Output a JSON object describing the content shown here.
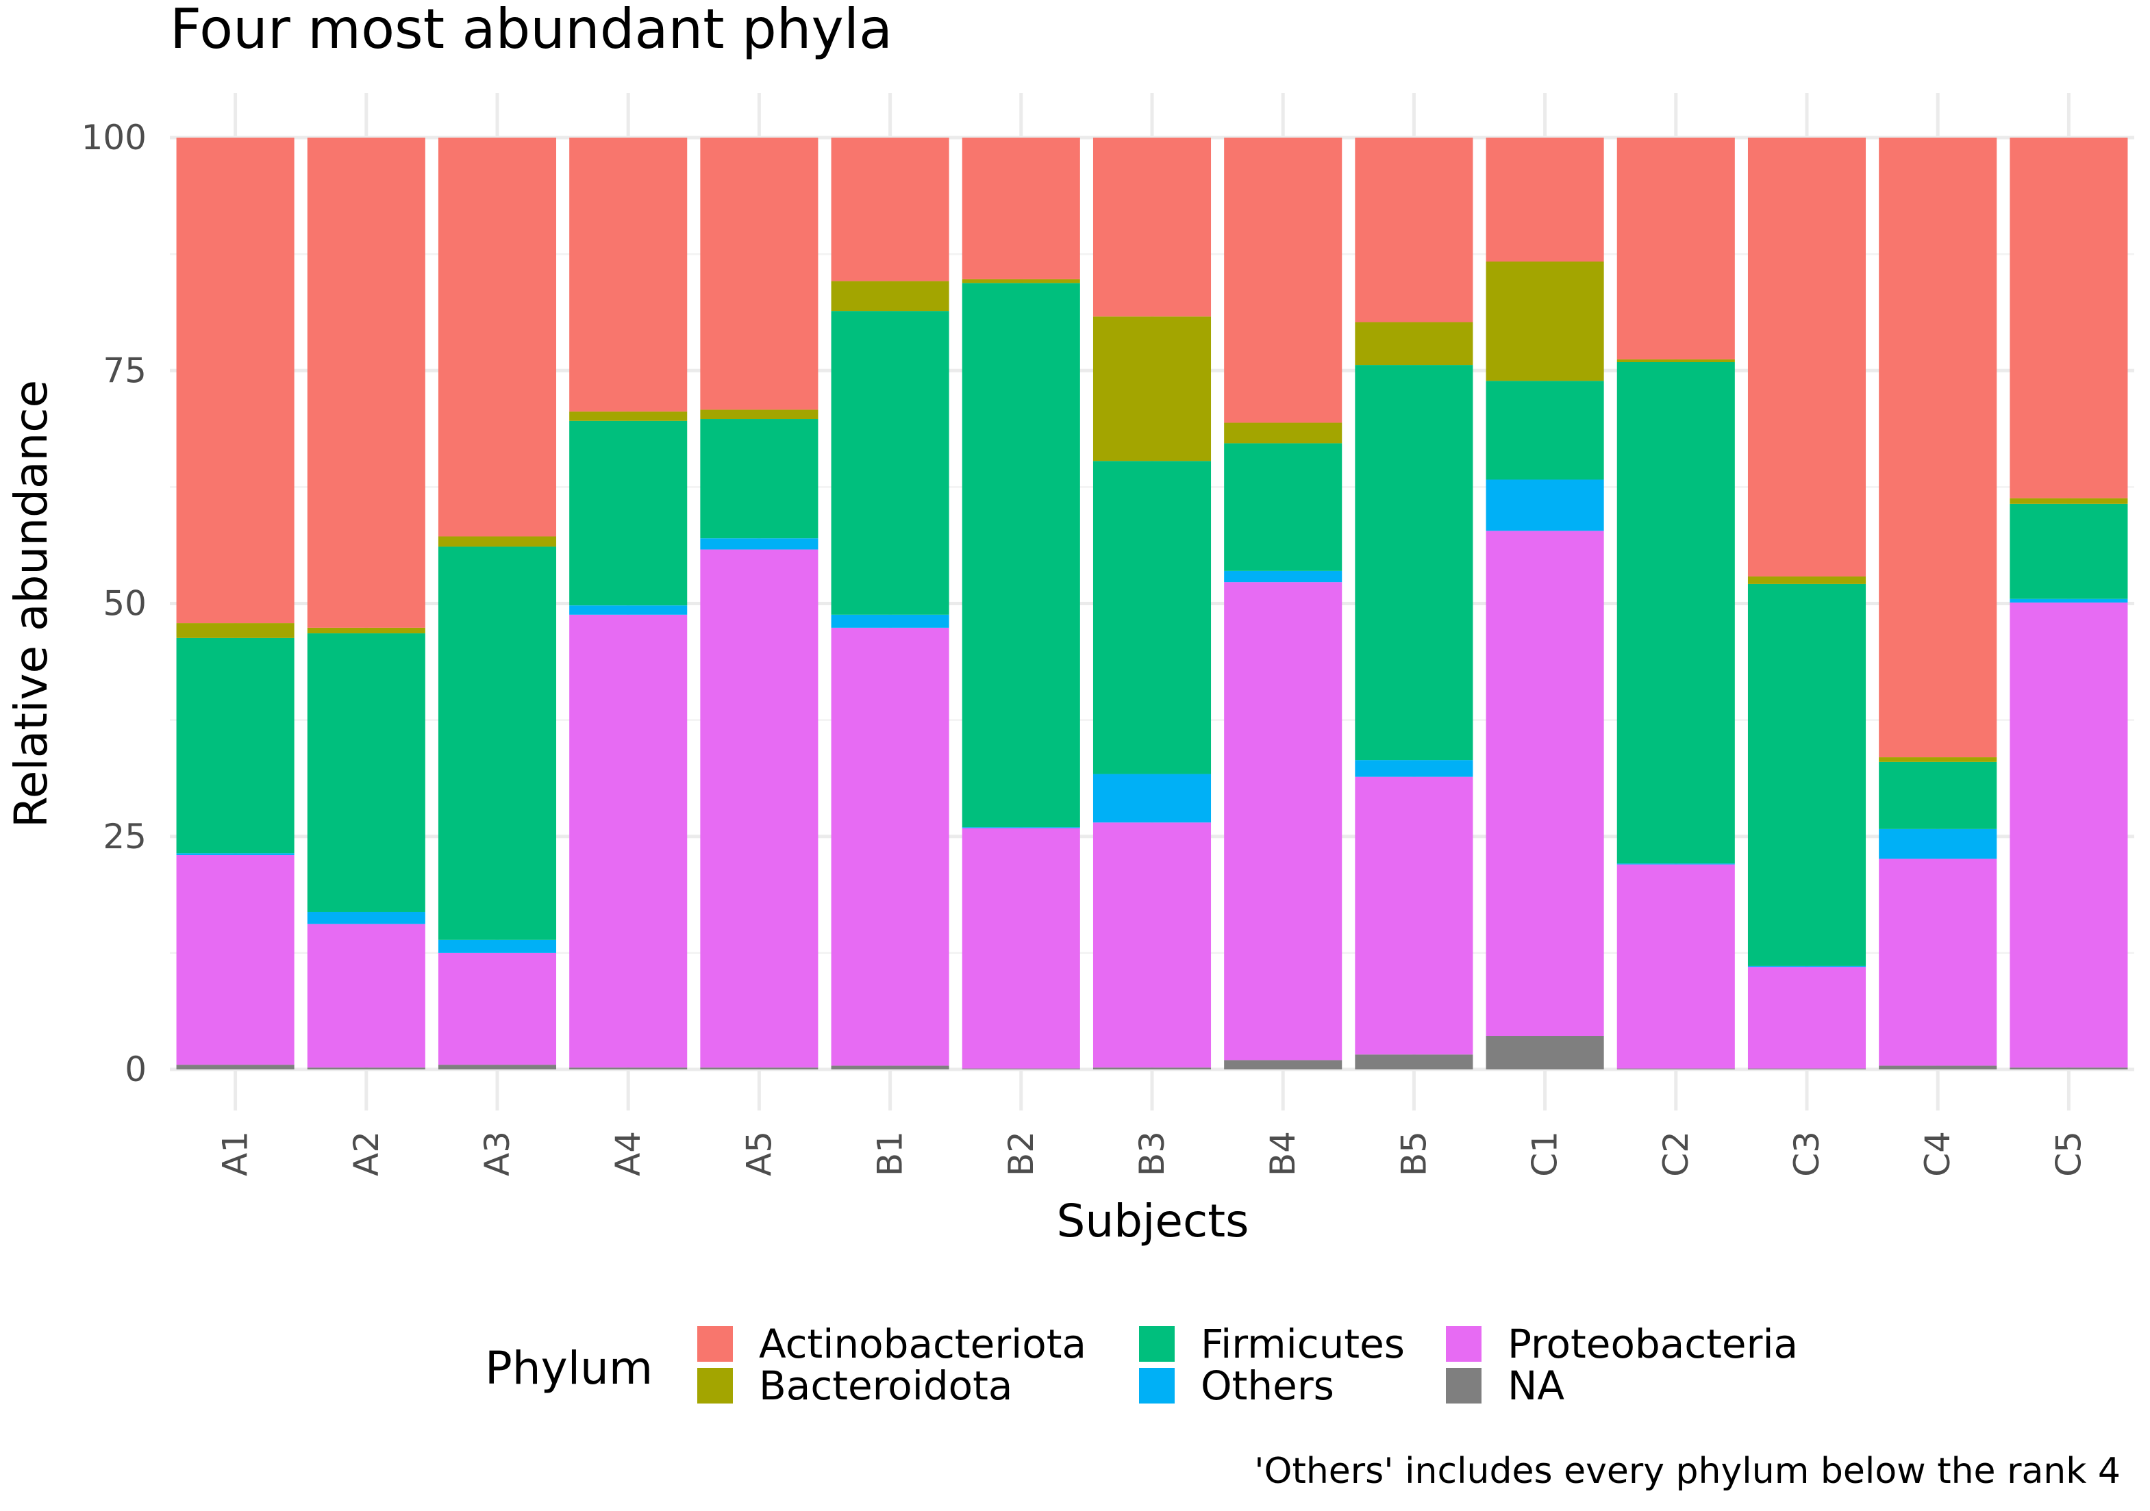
{
  "chart_data": {
    "type": "bar",
    "stacked": true,
    "title": "Four most abundant phyla",
    "xlabel": "Subjects",
    "ylabel": "Relative abundance",
    "ylim": [
      0,
      100
    ],
    "yticks": [
      "0",
      "25",
      "50",
      "75",
      "100"
    ],
    "yticks_values": [
      0,
      25,
      50,
      75,
      100
    ],
    "categories": [
      "A1",
      "A2",
      "A3",
      "A4",
      "A5",
      "B1",
      "B2",
      "B3",
      "B4",
      "B5",
      "C1",
      "C2",
      "C3",
      "C4",
      "C5"
    ],
    "stack_order_bottom_to_top": [
      "NA",
      "Proteobacteria",
      "Others",
      "Firmicutes",
      "Bacteroidota",
      "Actinobacteriota"
    ],
    "series": [
      {
        "name": "NA",
        "color": "#7f7f7f",
        "values": [
          0.5,
          0.2,
          0.5,
          0.2,
          0.2,
          0.4,
          0.1,
          0.2,
          1.0,
          1.6,
          3.6,
          0.1,
          0.1,
          0.4,
          0.2
        ]
      },
      {
        "name": "Proteobacteria",
        "color": "#e76bf3",
        "values": [
          22.5,
          15.4,
          12.0,
          48.6,
          55.6,
          47.0,
          25.8,
          26.3,
          51.3,
          29.8,
          54.2,
          21.9,
          10.9,
          22.2,
          49.9
        ]
      },
      {
        "name": "Others",
        "color": "#00b0f6",
        "values": [
          0.2,
          1.3,
          1.4,
          1.0,
          1.2,
          1.4,
          0.1,
          5.2,
          1.2,
          1.8,
          5.5,
          0.1,
          0.1,
          3.2,
          0.4
        ]
      },
      {
        "name": "Firmicutes",
        "color": "#00bf7d",
        "values": [
          23.1,
          29.9,
          42.2,
          19.8,
          12.8,
          32.6,
          58.4,
          33.6,
          13.7,
          42.4,
          10.6,
          53.8,
          41.0,
          7.2,
          10.2
        ]
      },
      {
        "name": "Bacteroidota",
        "color": "#a3a500",
        "values": [
          1.6,
          0.6,
          1.1,
          1.0,
          1.0,
          3.2,
          0.4,
          15.5,
          2.2,
          4.6,
          12.8,
          0.3,
          0.8,
          0.5,
          0.6
        ]
      },
      {
        "name": "Actinobacteriota",
        "color": "#f8766d",
        "values": [
          52.1,
          52.6,
          42.8,
          29.4,
          29.2,
          15.4,
          15.2,
          19.2,
          30.6,
          19.8,
          13.3,
          23.8,
          47.1,
          66.5,
          38.7
        ]
      }
    ],
    "legend": {
      "title": "Phylum",
      "position": "bottom",
      "entries": [
        {
          "name": "Actinobacteriota",
          "color": "#f8766d"
        },
        {
          "name": "Bacteroidota",
          "color": "#a3a500"
        },
        {
          "name": "Firmicutes",
          "color": "#00bf7d"
        },
        {
          "name": "Others",
          "color": "#00b0f6"
        },
        {
          "name": "Proteobacteria",
          "color": "#e76bf3"
        },
        {
          "name": "NA",
          "color": "#7f7f7f"
        }
      ]
    },
    "caption": "'Others' includes every phylum below the rank 4",
    "grid": true
  }
}
